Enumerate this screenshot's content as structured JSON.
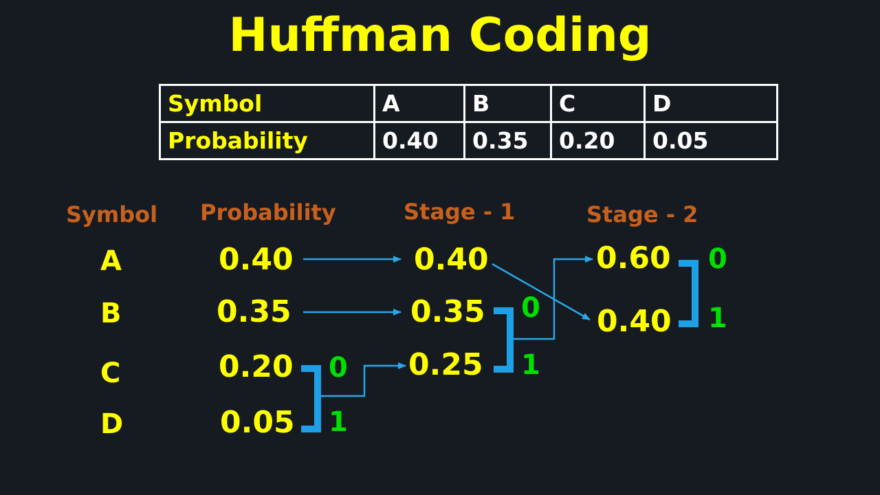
{
  "title": "Huffman Coding",
  "table": {
    "row_labels": [
      "Symbol",
      "Probability"
    ],
    "symbols": [
      "A",
      "B",
      "C",
      "D"
    ],
    "probabilities": [
      "0.40",
      "0.35",
      "0.20",
      "0.05"
    ]
  },
  "diagram": {
    "headers": {
      "symbol": "Symbol",
      "probability": "Probability",
      "stage1": "Stage - 1",
      "stage2": "Stage - 2"
    },
    "symbols": [
      "A",
      "B",
      "C",
      "D"
    ],
    "probabilities": [
      "0.40",
      "0.35",
      "0.20",
      "0.05"
    ],
    "stage1": [
      "0.40",
      "0.35",
      "0.25"
    ],
    "stage2": [
      "0.60",
      "0.40"
    ],
    "bits": {
      "zero": "0",
      "one": "1"
    }
  },
  "colors": {
    "background": "#161b22",
    "title": "#ffff00",
    "header": "#c8601e",
    "value": "#ffff00",
    "bit": "#00e000",
    "arrow": "#29a8e8",
    "bracket": "#1ea0e6"
  }
}
